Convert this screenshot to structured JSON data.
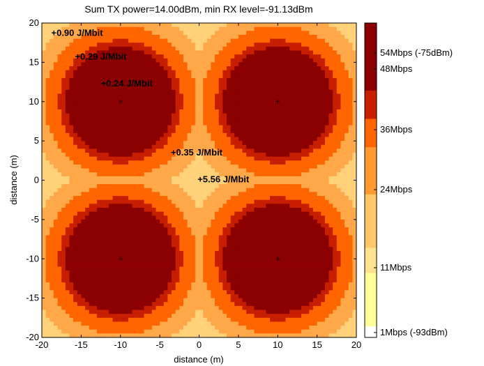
{
  "chart_data": {
    "type": "heatmap",
    "title": "Sum TX power=14.00dBm, min RX level=-91.13dBm",
    "xlabel": "distance (m)",
    "ylabel": "distance (m)",
    "xlim": [
      -20,
      20
    ],
    "ylim": [
      -20,
      20
    ],
    "x_ticks": [
      "-20",
      "-15",
      "-10",
      "-5",
      "0",
      "5",
      "10",
      "15",
      "20"
    ],
    "y_ticks": [
      "20",
      "15",
      "10",
      "5",
      "0",
      "-5",
      "-10",
      "-15",
      "-20"
    ],
    "grid": false,
    "transmitters": [
      {
        "x": -10,
        "y": 10
      },
      {
        "x": 10,
        "y": 10
      },
      {
        "x": -10,
        "y": -10
      },
      {
        "x": 10,
        "y": -10
      }
    ],
    "rate_zones": [
      {
        "max_radius": 6.9,
        "color": "#8b0000"
      },
      {
        "max_radius": 7.8,
        "color": "#c81e00"
      },
      {
        "max_radius": 9.7,
        "color": "#ff6600"
      },
      {
        "max_radius": 11.8,
        "color": "#ffa84a"
      },
      {
        "max_radius": 14.4,
        "color": "#ffd27a"
      },
      {
        "max_radius": 999,
        "color": "#ffff99"
      }
    ],
    "colorbar": {
      "labels": [
        "54Mbps (-75dBm)",
        "48Mbps",
        "36Mbps",
        "24Mbps",
        "11Mbps",
        "1Mbps (-93dBm)"
      ],
      "segments": [
        {
          "color": "#8b0000",
          "span": 0.215
        },
        {
          "color": "#c81e00",
          "span": 0.09
        },
        {
          "color": "#ff6600",
          "span": 0.09
        },
        {
          "color": "#ff9a30",
          "span": 0.15
        },
        {
          "color": "#ffc86a",
          "span": 0.17
        },
        {
          "color": "#ffe28f",
          "span": 0.08
        },
        {
          "color": "#ffff99",
          "span": 0.17
        },
        {
          "color": "#ffffff",
          "span": 0.035
        }
      ]
    },
    "annotations": [
      {
        "text": "+0.90 J/Mbit",
        "x": -18.8,
        "y": 18.7
      },
      {
        "text": "+0.29 J/Mbit",
        "x": -15.8,
        "y": 15.7
      },
      {
        "text": "+0.24 J/Mbit",
        "x": -12.5,
        "y": 12.3
      },
      {
        "text": "+0.35 J/Mbit",
        "x": -3.6,
        "y": 3.5
      },
      {
        "text": "+5.56 J/Mbit",
        "x": -0.2,
        "y": 0.1
      }
    ]
  }
}
